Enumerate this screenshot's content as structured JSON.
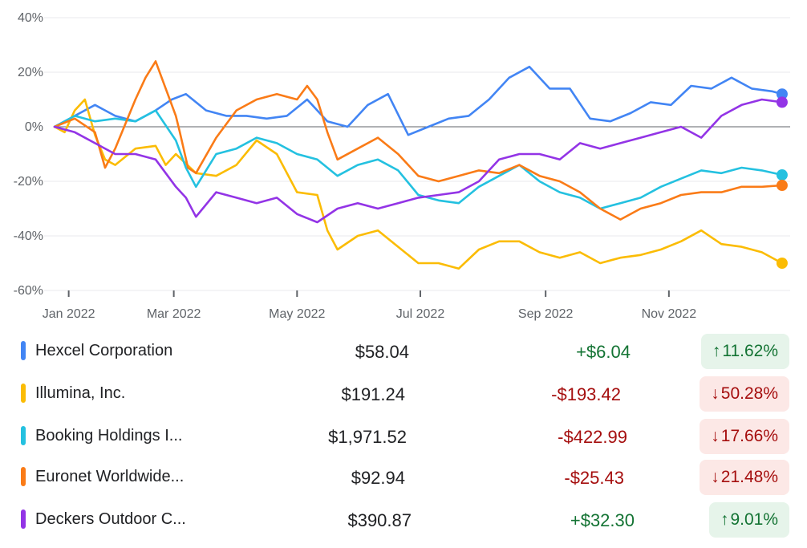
{
  "chart_data": {
    "type": "line",
    "xlim": [
      0,
      364
    ],
    "ylim": [
      -60,
      40
    ],
    "y_ticks": [
      40,
      20,
      0,
      -20,
      -40,
      -60
    ],
    "y_tick_labels": [
      "40%",
      "20%",
      "0%",
      "-20%",
      "-40%",
      "-60%"
    ],
    "x_ticks": [
      {
        "label": "Jan 2022",
        "day": 7
      },
      {
        "label": "Mar 2022",
        "day": 59
      },
      {
        "label": "May 2022",
        "day": 120
      },
      {
        "label": "Jul 2022",
        "day": 181
      },
      {
        "label": "Sep 2022",
        "day": 243
      },
      {
        "label": "Nov 2022",
        "day": 304
      }
    ],
    "baseline": 0,
    "grid": true,
    "series": [
      {
        "name": "Hexcel Corporation",
        "color": "#4285f4",
        "points": [
          [
            0,
            0
          ],
          [
            10,
            4
          ],
          [
            20,
            8
          ],
          [
            30,
            4
          ],
          [
            40,
            2
          ],
          [
            50,
            6
          ],
          [
            58,
            10
          ],
          [
            65,
            12
          ],
          [
            75,
            6
          ],
          [
            85,
            4
          ],
          [
            95,
            4
          ],
          [
            105,
            3
          ],
          [
            115,
            4
          ],
          [
            125,
            10
          ],
          [
            135,
            2
          ],
          [
            145,
            0
          ],
          [
            155,
            8
          ],
          [
            165,
            12
          ],
          [
            175,
            -3
          ],
          [
            185,
            0
          ],
          [
            195,
            3
          ],
          [
            205,
            4
          ],
          [
            215,
            10
          ],
          [
            225,
            18
          ],
          [
            235,
            22
          ],
          [
            245,
            14
          ],
          [
            255,
            14
          ],
          [
            265,
            3
          ],
          [
            275,
            2
          ],
          [
            285,
            5
          ],
          [
            295,
            9
          ],
          [
            305,
            8
          ],
          [
            315,
            15
          ],
          [
            325,
            14
          ],
          [
            335,
            18
          ],
          [
            345,
            14
          ],
          [
            355,
            13
          ],
          [
            360,
            12
          ]
        ]
      },
      {
        "name": "Illumina, Inc.",
        "color": "#fbbc04",
        "points": [
          [
            0,
            0
          ],
          [
            5,
            -2
          ],
          [
            10,
            6
          ],
          [
            15,
            10
          ],
          [
            20,
            -3
          ],
          [
            25,
            -12
          ],
          [
            30,
            -14
          ],
          [
            40,
            -8
          ],
          [
            50,
            -7
          ],
          [
            55,
            -14
          ],
          [
            60,
            -10
          ],
          [
            70,
            -17
          ],
          [
            80,
            -18
          ],
          [
            90,
            -14
          ],
          [
            100,
            -5
          ],
          [
            110,
            -10
          ],
          [
            120,
            -24
          ],
          [
            130,
            -25
          ],
          [
            135,
            -38
          ],
          [
            140,
            -45
          ],
          [
            150,
            -40
          ],
          [
            160,
            -38
          ],
          [
            170,
            -44
          ],
          [
            180,
            -50
          ],
          [
            190,
            -50
          ],
          [
            200,
            -52
          ],
          [
            210,
            -45
          ],
          [
            220,
            -42
          ],
          [
            230,
            -42
          ],
          [
            240,
            -46
          ],
          [
            250,
            -48
          ],
          [
            260,
            -46
          ],
          [
            270,
            -50
          ],
          [
            280,
            -48
          ],
          [
            290,
            -47
          ],
          [
            300,
            -45
          ],
          [
            310,
            -42
          ],
          [
            320,
            -38
          ],
          [
            330,
            -43
          ],
          [
            340,
            -44
          ],
          [
            350,
            -46
          ],
          [
            360,
            -50
          ]
        ]
      },
      {
        "name": "Booking Holdings I...",
        "color": "#24c1e0",
        "points": [
          [
            0,
            0
          ],
          [
            10,
            4
          ],
          [
            20,
            2
          ],
          [
            30,
            3
          ],
          [
            40,
            2
          ],
          [
            50,
            6
          ],
          [
            60,
            -5
          ],
          [
            65,
            -15
          ],
          [
            70,
            -22
          ],
          [
            80,
            -10
          ],
          [
            90,
            -8
          ],
          [
            100,
            -4
          ],
          [
            110,
            -6
          ],
          [
            120,
            -10
          ],
          [
            130,
            -12
          ],
          [
            140,
            -18
          ],
          [
            150,
            -14
          ],
          [
            160,
            -12
          ],
          [
            170,
            -16
          ],
          [
            180,
            -25
          ],
          [
            190,
            -27
          ],
          [
            200,
            -28
          ],
          [
            210,
            -22
          ],
          [
            220,
            -18
          ],
          [
            230,
            -14
          ],
          [
            240,
            -20
          ],
          [
            250,
            -24
          ],
          [
            260,
            -26
          ],
          [
            270,
            -30
          ],
          [
            280,
            -28
          ],
          [
            290,
            -26
          ],
          [
            300,
            -22
          ],
          [
            310,
            -19
          ],
          [
            320,
            -16
          ],
          [
            330,
            -17
          ],
          [
            340,
            -15
          ],
          [
            350,
            -16
          ],
          [
            360,
            -17.66
          ]
        ]
      },
      {
        "name": "Euronet Worldwide...",
        "color": "#fa7b17",
        "points": [
          [
            0,
            0
          ],
          [
            10,
            3
          ],
          [
            20,
            -2
          ],
          [
            25,
            -15
          ],
          [
            30,
            -8
          ],
          [
            40,
            10
          ],
          [
            45,
            18
          ],
          [
            50,
            24
          ],
          [
            55,
            14
          ],
          [
            60,
            4
          ],
          [
            62,
            -2
          ],
          [
            66,
            -15
          ],
          [
            70,
            -17
          ],
          [
            80,
            -4
          ],
          [
            90,
            6
          ],
          [
            100,
            10
          ],
          [
            110,
            12
          ],
          [
            120,
            10
          ],
          [
            125,
            15
          ],
          [
            130,
            10
          ],
          [
            135,
            -2
          ],
          [
            140,
            -12
          ],
          [
            150,
            -8
          ],
          [
            160,
            -4
          ],
          [
            170,
            -10
          ],
          [
            180,
            -18
          ],
          [
            190,
            -20
          ],
          [
            200,
            -18
          ],
          [
            210,
            -16
          ],
          [
            220,
            -17
          ],
          [
            230,
            -14
          ],
          [
            240,
            -18
          ],
          [
            250,
            -20
          ],
          [
            260,
            -24
          ],
          [
            270,
            -30
          ],
          [
            280,
            -34
          ],
          [
            290,
            -30
          ],
          [
            300,
            -28
          ],
          [
            310,
            -25
          ],
          [
            320,
            -24
          ],
          [
            330,
            -24
          ],
          [
            340,
            -22
          ],
          [
            350,
            -22
          ],
          [
            360,
            -21.48
          ]
        ]
      },
      {
        "name": "Deckers Outdoor C...",
        "color": "#9334e6",
        "points": [
          [
            0,
            0
          ],
          [
            10,
            -2
          ],
          [
            20,
            -6
          ],
          [
            30,
            -10
          ],
          [
            40,
            -10
          ],
          [
            50,
            -12
          ],
          [
            60,
            -22
          ],
          [
            65,
            -26
          ],
          [
            70,
            -33
          ],
          [
            80,
            -24
          ],
          [
            90,
            -26
          ],
          [
            100,
            -28
          ],
          [
            110,
            -26
          ],
          [
            120,
            -32
          ],
          [
            130,
            -35
          ],
          [
            140,
            -30
          ],
          [
            150,
            -28
          ],
          [
            160,
            -30
          ],
          [
            170,
            -28
          ],
          [
            180,
            -26
          ],
          [
            190,
            -25
          ],
          [
            200,
            -24
          ],
          [
            210,
            -20
          ],
          [
            220,
            -12
          ],
          [
            230,
            -10
          ],
          [
            240,
            -10
          ],
          [
            250,
            -12
          ],
          [
            260,
            -6
          ],
          [
            270,
            -8
          ],
          [
            280,
            -6
          ],
          [
            290,
            -4
          ],
          [
            300,
            -2
          ],
          [
            310,
            0
          ],
          [
            320,
            -4
          ],
          [
            330,
            4
          ],
          [
            340,
            8
          ],
          [
            350,
            10
          ],
          [
            360,
            9.01
          ]
        ]
      }
    ]
  },
  "legend": {
    "rows": [
      {
        "name": "Hexcel Corporation",
        "price": "$58.04",
        "change": "+$6.04",
        "percent": "11.62%",
        "direction": "up",
        "color": "#4285f4"
      },
      {
        "name": "Illumina, Inc.",
        "price": "$191.24",
        "change": "-$193.42",
        "percent": "50.28%",
        "direction": "down",
        "color": "#fbbc04"
      },
      {
        "name": "Booking Holdings I...",
        "price": "$1,971.52",
        "change": "-$422.99",
        "percent": "17.66%",
        "direction": "down",
        "color": "#24c1e0"
      },
      {
        "name": "Euronet Worldwide...",
        "price": "$92.94",
        "change": "-$25.43",
        "percent": "21.48%",
        "direction": "down",
        "color": "#fa7b17"
      },
      {
        "name": "Deckers Outdoor C...",
        "price": "$390.87",
        "change": "+$32.30",
        "percent": "9.01%",
        "direction": "up",
        "color": "#9334e6"
      }
    ],
    "up_arrow": "↑",
    "down_arrow": "↓"
  }
}
